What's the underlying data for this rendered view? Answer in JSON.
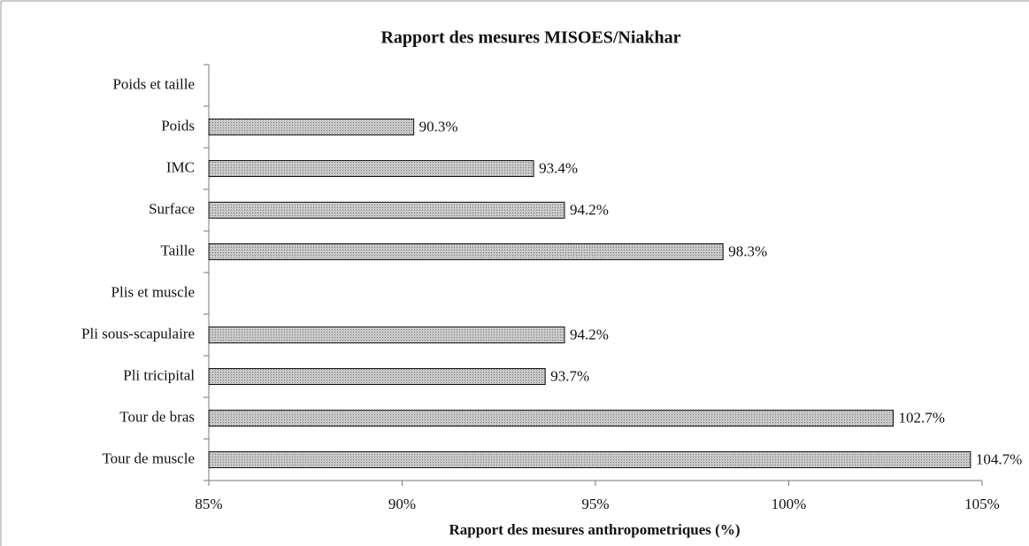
{
  "chart_data": {
    "type": "bar",
    "orientation": "horizontal",
    "title": "Rapport des mesures MISOES/Niakhar",
    "xlabel": "Rapport des mesures anthropometriques (%)",
    "categories": [
      "Poids et taille",
      "Poids",
      "IMC",
      "Surface",
      "Taille",
      "Plis et muscle",
      "Pli sous-scapulaire",
      "Pli tricipital",
      "Tour de bras",
      "Tour de muscle"
    ],
    "values": [
      null,
      90.3,
      93.4,
      94.2,
      98.3,
      null,
      94.2,
      93.7,
      102.7,
      104.7
    ],
    "value_labels": [
      null,
      "90.3%",
      "93.4%",
      "94.2%",
      "98.3%",
      null,
      "94.2%",
      "93.7%",
      "102.7%",
      "104.7%"
    ],
    "color": "#bdbdbd",
    "xlim": [
      85,
      105
    ],
    "xticks": [
      {
        "value": 85,
        "label": "85%"
      },
      {
        "value": 90,
        "label": "90%"
      },
      {
        "value": 95,
        "label": "95%"
      },
      {
        "value": 100,
        "label": "100%"
      },
      {
        "value": 105,
        "label": "105%"
      }
    ]
  }
}
